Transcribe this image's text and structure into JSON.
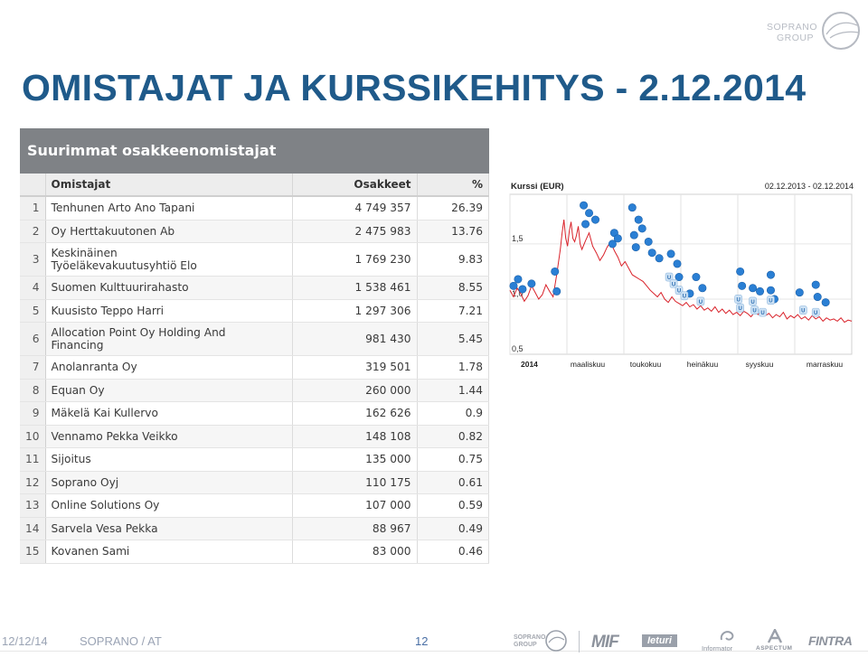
{
  "title": "OMISTAJAT JA KURSSIKEHITYS - 2.12.2014",
  "brand": {
    "line1": "SOPRANO",
    "line2": "GROUP"
  },
  "table": {
    "header": "Suurimmat osakkeenomistajat",
    "columns": [
      "Omistajat",
      "Osakkeet",
      "%"
    ],
    "rows": [
      {
        "n": "1",
        "name": "Tenhunen Arto Ano Tapani",
        "shares": "4 749 357",
        "pct": "26.39"
      },
      {
        "n": "2",
        "name": "Oy Herttakuutonen Ab",
        "shares": "2 475 983",
        "pct": "13.76"
      },
      {
        "n": "3",
        "name": "Keskinäinen",
        "name2": "Työeläkevakuutusyhtiö Elo",
        "shares": "1 769 230",
        "pct": "9.83"
      },
      {
        "n": "4",
        "name": "Suomen Kulttuurirahasto",
        "shares": "1 538 461",
        "pct": "8.55"
      },
      {
        "n": "5",
        "name": "Kuusisto Teppo Harri",
        "shares": "1 297 306",
        "pct": "7.21"
      },
      {
        "n": "6",
        "name": "Allocation Point Oy Holding And",
        "name2": "Financing",
        "shares": "981 430",
        "pct": "5.45"
      },
      {
        "n": "7",
        "name": "Anolanranta Oy",
        "shares": "319 501",
        "pct": "1.78"
      },
      {
        "n": "8",
        "name": "Equan Oy",
        "shares": "260 000",
        "pct": "1.44"
      },
      {
        "n": "9",
        "name": "Mäkelä Kai Kullervo",
        "shares": "162 626",
        "pct": "0.9"
      },
      {
        "n": "10",
        "name": "Vennamo Pekka Veikko",
        "shares": "148 108",
        "pct": "0.82"
      },
      {
        "n": "11",
        "name": "Sijoitus",
        "shares": "135 000",
        "pct": "0.75"
      },
      {
        "n": "12",
        "name": "Soprano Oyj",
        "shares": "110 175",
        "pct": "0.61"
      },
      {
        "n": "13",
        "name": "Online Solutions Oy",
        "shares": "107 000",
        "pct": "0.59"
      },
      {
        "n": "14",
        "name": "Sarvela Vesa Pekka",
        "shares": "88 967",
        "pct": "0.49"
      },
      {
        "n": "15",
        "name": "Kovanen Sami",
        "shares": "83 000",
        "pct": "0.46"
      }
    ]
  },
  "chart_data": {
    "type": "line",
    "title": "Kurssi (EUR)",
    "date_range": "02.12.2013 - 02.12.2014",
    "ylim": [
      0.5,
      1.95
    ],
    "y_ticks": [
      "1,5",
      "1,0",
      "0,5"
    ],
    "x_labels": [
      "2014",
      "maaliskuu",
      "toukokuu",
      "heinäkuu",
      "syyskuu",
      "marraskuu"
    ],
    "series": [
      {
        "x": [
          0,
          4,
          8,
          12,
          16,
          20,
          24,
          28,
          32,
          36,
          40,
          44,
          48,
          52,
          56,
          58,
          60,
          62,
          64,
          66,
          68,
          70,
          72,
          74,
          76,
          78,
          80,
          84,
          88,
          92,
          96,
          100,
          104,
          108,
          112,
          116,
          120,
          124,
          128,
          132,
          136,
          140,
          144,
          148,
          152,
          156,
          160,
          164,
          168,
          172,
          176,
          180,
          184,
          188,
          192,
          196,
          200,
          204,
          208,
          212,
          216,
          220,
          224,
          228,
          232,
          236,
          240,
          244,
          248,
          252,
          256,
          260,
          264,
          268,
          272,
          276,
          280,
          284,
          288,
          292,
          296,
          300,
          304,
          308,
          312,
          316,
          320,
          324,
          328,
          332,
          336,
          340,
          344,
          348,
          352,
          356,
          360,
          364,
          368,
          372,
          376,
          380
        ],
        "y": [
          1.08,
          1.02,
          1.1,
          1.05,
          0.98,
          1.03,
          1.12,
          1.06,
          1.0,
          1.04,
          1.13,
          1.07,
          1.02,
          1.22,
          1.45,
          1.6,
          1.72,
          1.55,
          1.48,
          1.62,
          1.7,
          1.55,
          1.52,
          1.58,
          1.66,
          1.5,
          1.45,
          1.53,
          1.6,
          1.48,
          1.42,
          1.35,
          1.4,
          1.47,
          1.52,
          1.44,
          1.38,
          1.3,
          1.34,
          1.28,
          1.22,
          1.2,
          1.18,
          1.16,
          1.12,
          1.08,
          1.05,
          1.02,
          1.06,
          1.0,
          0.97,
          1.02,
          0.98,
          0.96,
          0.94,
          0.97,
          0.93,
          0.95,
          0.91,
          0.94,
          0.9,
          0.92,
          0.89,
          0.93,
          0.88,
          0.91,
          0.87,
          0.9,
          0.86,
          0.88,
          0.85,
          0.89,
          0.87,
          0.84,
          0.88,
          0.86,
          0.9,
          0.85,
          0.87,
          0.83,
          0.86,
          0.84,
          0.88,
          0.82,
          0.85,
          0.83,
          0.86,
          0.82,
          0.84,
          0.81,
          0.85,
          0.82,
          0.84,
          0.8,
          0.83,
          0.81,
          0.82,
          0.8,
          0.83,
          0.79,
          0.81,
          0.8
        ]
      }
    ],
    "markers": [
      {
        "x": 4,
        "y": 1.12,
        "t": "I"
      },
      {
        "x": 9,
        "y": 1.18,
        "t": "I"
      },
      {
        "x": 14,
        "y": 1.09,
        "t": "I"
      },
      {
        "x": 24,
        "y": 1.14,
        "t": "I"
      },
      {
        "x": 50,
        "y": 1.25,
        "t": "I"
      },
      {
        "x": 52,
        "y": 1.07,
        "t": "I"
      },
      {
        "x": 82,
        "y": 1.85,
        "t": "I"
      },
      {
        "x": 88,
        "y": 1.78,
        "t": "I"
      },
      {
        "x": 84,
        "y": 1.68,
        "t": "I"
      },
      {
        "x": 95,
        "y": 1.72,
        "t": "I"
      },
      {
        "x": 116,
        "y": 1.6,
        "t": "I"
      },
      {
        "x": 114,
        "y": 1.5,
        "t": "I"
      },
      {
        "x": 120,
        "y": 1.55,
        "t": "I"
      },
      {
        "x": 136,
        "y": 1.83,
        "t": "I"
      },
      {
        "x": 143,
        "y": 1.72,
        "t": "I"
      },
      {
        "x": 138,
        "y": 1.58,
        "t": "I"
      },
      {
        "x": 147,
        "y": 1.64,
        "t": "I"
      },
      {
        "x": 140,
        "y": 1.47,
        "t": "I"
      },
      {
        "x": 154,
        "y": 1.52,
        "t": "I"
      },
      {
        "x": 158,
        "y": 1.42,
        "t": "I"
      },
      {
        "x": 166,
        "y": 1.37,
        "t": "I"
      },
      {
        "x": 179,
        "y": 1.41,
        "t": "I"
      },
      {
        "x": 186,
        "y": 1.32,
        "t": "I"
      },
      {
        "x": 188,
        "y": 1.2,
        "t": "I"
      },
      {
        "x": 200,
        "y": 1.05,
        "t": "I"
      },
      {
        "x": 214,
        "y": 1.1,
        "t": "I"
      },
      {
        "x": 207,
        "y": 1.2,
        "t": "I"
      },
      {
        "x": 256,
        "y": 1.25,
        "t": "I"
      },
      {
        "x": 258,
        "y": 1.12,
        "t": "I"
      },
      {
        "x": 270,
        "y": 1.1,
        "t": "I"
      },
      {
        "x": 278,
        "y": 1.07,
        "t": "I"
      },
      {
        "x": 290,
        "y": 1.22,
        "t": "I"
      },
      {
        "x": 290,
        "y": 1.08,
        "t": "I"
      },
      {
        "x": 294,
        "y": 1.0,
        "t": "I"
      },
      {
        "x": 322,
        "y": 1.06,
        "t": "I"
      },
      {
        "x": 340,
        "y": 1.13,
        "t": "I"
      },
      {
        "x": 342,
        "y": 1.02,
        "t": "I"
      },
      {
        "x": 351,
        "y": 0.97,
        "t": "I"
      },
      {
        "x": 177,
        "y": 1.2,
        "t": "U"
      },
      {
        "x": 182,
        "y": 1.14,
        "t": "U"
      },
      {
        "x": 188,
        "y": 1.08,
        "t": "U"
      },
      {
        "x": 194,
        "y": 1.03,
        "t": "U"
      },
      {
        "x": 212,
        "y": 0.98,
        "t": "U"
      },
      {
        "x": 254,
        "y": 1.0,
        "t": "U"
      },
      {
        "x": 256,
        "y": 0.92,
        "t": "U"
      },
      {
        "x": 270,
        "y": 0.98,
        "t": "U"
      },
      {
        "x": 272,
        "y": 0.9,
        "t": "U"
      },
      {
        "x": 281,
        "y": 0.88,
        "t": "U"
      },
      {
        "x": 290,
        "y": 0.99,
        "t": "U"
      },
      {
        "x": 326,
        "y": 0.9,
        "t": "U"
      },
      {
        "x": 340,
        "y": 0.88,
        "t": "U"
      }
    ]
  },
  "footer": {
    "date": "12/12/14",
    "org": "SOPRANO / AT",
    "page": "12",
    "logos": [
      "SOPRANO GROUP",
      "MIF",
      "Ieturi",
      "Informator",
      "ASPECTUM",
      "FINTRA"
    ]
  }
}
